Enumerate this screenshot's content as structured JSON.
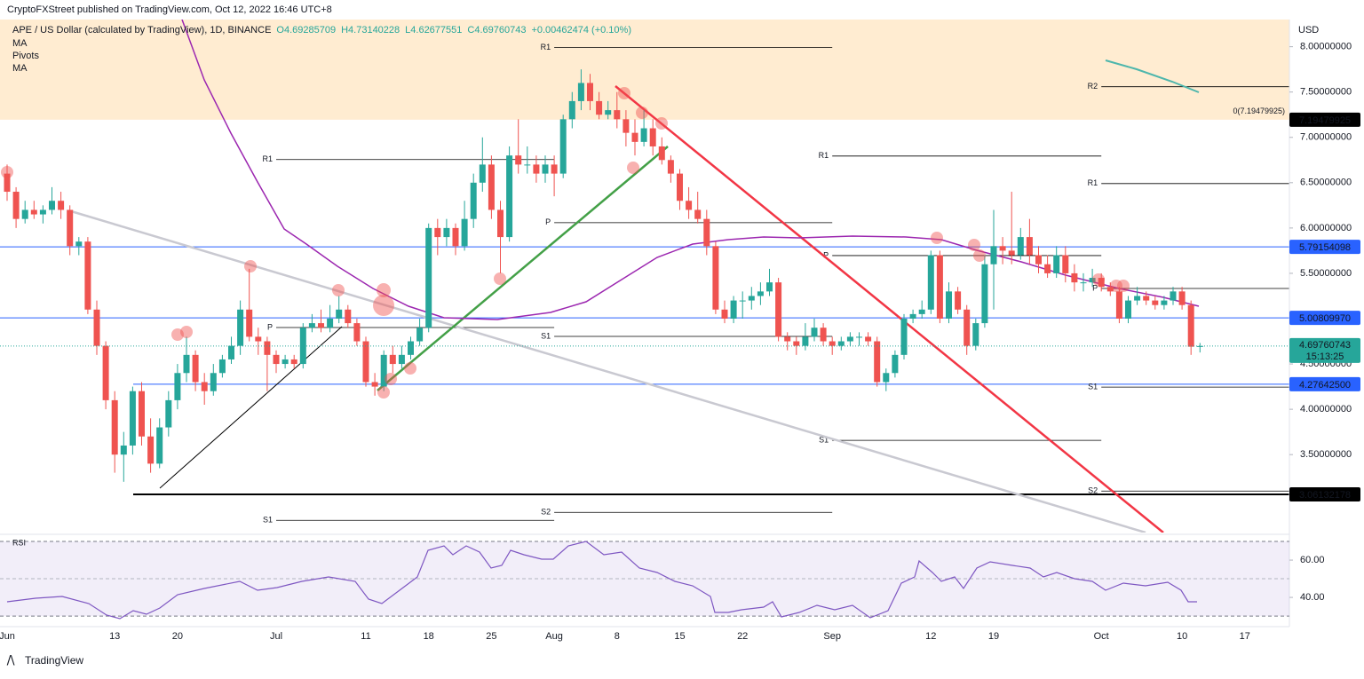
{
  "header": {
    "published": "CryptoFXStreet published on TradingView.com, Oct 12, 2022 16:46 UTC+8",
    "logo": "TradingView"
  },
  "legend": {
    "symbol": "APE / US Dollar (calculated by TradingView), 1D, BINANCE",
    "open": "O4.69285709",
    "high": "H4.73140228",
    "low": "L4.62677551",
    "close": "C4.69760743",
    "change": "+0.00462474 (+0.10%)",
    "indicators": [
      "MA",
      "Pivots",
      "MA"
    ]
  },
  "chart_data": {
    "type": "candlestick",
    "currency": "USD",
    "up_color": "#26a69a",
    "down_color": "#ef5350",
    "categories": [
      "Jun",
      null,
      null,
      null,
      null,
      null,
      null,
      null,
      null,
      null,
      null,
      null,
      "13",
      null,
      null,
      null,
      null,
      null,
      null,
      "20",
      null,
      null,
      null,
      null,
      null,
      null,
      null,
      null,
      null,
      null,
      "Jul",
      null,
      null,
      null,
      null,
      null,
      null,
      null,
      null,
      null,
      "11",
      null,
      null,
      null,
      null,
      null,
      null,
      "18",
      null,
      null,
      null,
      null,
      null,
      null,
      "25",
      null,
      null,
      null,
      null,
      null,
      null,
      "Aug",
      null,
      null,
      null,
      null,
      null,
      null,
      "8",
      null,
      null,
      null,
      null,
      null,
      null,
      "15",
      null,
      null,
      null,
      null,
      null,
      null,
      "22",
      null,
      null,
      null,
      null,
      null,
      null,
      null,
      null,
      null,
      "Sep",
      null,
      null,
      null,
      null,
      null,
      null,
      null,
      null,
      null,
      null,
      "12",
      null,
      null,
      null,
      null,
      null,
      null,
      "19",
      null,
      null,
      null,
      null,
      null,
      null,
      null,
      null,
      null,
      null,
      null,
      "Oct",
      null,
      null,
      null,
      null,
      null,
      null,
      null,
      null,
      "10",
      null,
      null,
      null,
      null,
      null,
      null,
      "17"
    ],
    "candles": [
      [
        6.6,
        6.7,
        6.3,
        6.4
      ],
      [
        6.4,
        6.45,
        6.0,
        6.1
      ],
      [
        6.1,
        6.3,
        6.05,
        6.2
      ],
      [
        6.2,
        6.3,
        6.1,
        6.15
      ],
      [
        6.15,
        6.25,
        6.05,
        6.2
      ],
      [
        6.2,
        6.45,
        6.15,
        6.3
      ],
      [
        6.3,
        6.4,
        6.1,
        6.2
      ],
      [
        6.2,
        6.25,
        5.7,
        5.8
      ],
      [
        5.8,
        5.9,
        5.7,
        5.85
      ],
      [
        5.85,
        5.9,
        5.05,
        5.1
      ],
      [
        5.1,
        5.2,
        4.6,
        4.7
      ],
      [
        4.7,
        4.75,
        4.0,
        4.1
      ],
      [
        4.1,
        4.2,
        3.3,
        3.5
      ],
      [
        3.5,
        3.75,
        3.2,
        3.6
      ],
      [
        3.6,
        4.25,
        3.5,
        4.2
      ],
      [
        4.2,
        4.3,
        3.6,
        3.7
      ],
      [
        3.7,
        3.9,
        3.3,
        3.4
      ],
      [
        3.4,
        3.9,
        3.35,
        3.8
      ],
      [
        3.8,
        4.2,
        3.7,
        4.1
      ],
      [
        4.1,
        4.5,
        4.0,
        4.4
      ],
      [
        4.4,
        4.8,
        4.3,
        4.6
      ],
      [
        4.6,
        4.65,
        4.2,
        4.3
      ],
      [
        4.3,
        4.4,
        4.05,
        4.2
      ],
      [
        4.2,
        4.5,
        4.15,
        4.4
      ],
      [
        4.4,
        4.6,
        4.35,
        4.55
      ],
      [
        4.55,
        4.8,
        4.5,
        4.7
      ],
      [
        4.7,
        5.2,
        4.6,
        5.1
      ],
      [
        5.1,
        5.55,
        4.75,
        4.8
      ],
      [
        4.8,
        4.9,
        4.6,
        4.75
      ],
      [
        4.75,
        4.8,
        4.2,
        4.6
      ],
      [
        4.6,
        4.65,
        4.4,
        4.5
      ],
      [
        4.5,
        4.6,
        4.45,
        4.55
      ],
      [
        4.55,
        4.6,
        4.45,
        4.5
      ],
      [
        4.5,
        4.95,
        4.45,
        4.9
      ],
      [
        4.9,
        5.05,
        4.85,
        4.95
      ],
      [
        4.95,
        5.1,
        4.85,
        4.9
      ],
      [
        4.9,
        5.15,
        4.85,
        5.0
      ],
      [
        5.0,
        5.25,
        4.95,
        5.1
      ],
      [
        5.1,
        5.15,
        4.9,
        4.95
      ],
      [
        4.95,
        5.0,
        4.7,
        4.75
      ],
      [
        4.75,
        4.8,
        4.25,
        4.3
      ],
      [
        4.3,
        4.4,
        4.15,
        4.25
      ],
      [
        4.25,
        4.65,
        4.2,
        4.6
      ],
      [
        4.6,
        4.7,
        4.4,
        4.5
      ],
      [
        4.5,
        4.7,
        4.45,
        4.6
      ],
      [
        4.6,
        4.8,
        4.55,
        4.75
      ],
      [
        4.75,
        5.0,
        4.7,
        4.9
      ],
      [
        4.9,
        6.05,
        4.85,
        6.0
      ],
      [
        6.0,
        6.1,
        5.7,
        5.9
      ],
      [
        5.9,
        6.1,
        5.8,
        6.0
      ],
      [
        6.0,
        6.05,
        5.7,
        5.8
      ],
      [
        5.8,
        6.3,
        5.75,
        6.1
      ],
      [
        6.1,
        6.6,
        6.0,
        6.5
      ],
      [
        6.5,
        7.0,
        6.4,
        6.7
      ],
      [
        6.7,
        6.8,
        6.1,
        6.2
      ],
      [
        6.2,
        6.3,
        5.5,
        5.9
      ],
      [
        5.9,
        6.9,
        5.85,
        6.8
      ],
      [
        6.8,
        7.2,
        6.6,
        6.7
      ],
      [
        6.7,
        6.9,
        6.6,
        6.7
      ],
      [
        6.7,
        6.8,
        6.5,
        6.6
      ],
      [
        6.6,
        6.8,
        6.5,
        6.7
      ],
      [
        6.7,
        6.8,
        6.35,
        6.6
      ],
      [
        6.6,
        7.25,
        6.55,
        7.2
      ],
      [
        7.2,
        7.5,
        7.1,
        7.4
      ],
      [
        7.4,
        7.75,
        7.3,
        7.6
      ],
      [
        7.6,
        7.7,
        7.3,
        7.4
      ],
      [
        7.4,
        7.5,
        7.2,
        7.25
      ],
      [
        7.25,
        7.4,
        7.2,
        7.3
      ],
      [
        7.3,
        7.5,
        7.1,
        7.2
      ],
      [
        7.2,
        7.3,
        6.9,
        7.05
      ],
      [
        7.05,
        7.2,
        6.8,
        6.95
      ],
      [
        6.95,
        7.3,
        6.9,
        7.1
      ],
      [
        7.1,
        7.2,
        6.8,
        6.9
      ],
      [
        6.9,
        7.0,
        6.7,
        6.75
      ],
      [
        6.75,
        6.8,
        6.5,
        6.6
      ],
      [
        6.6,
        6.65,
        6.2,
        6.3
      ],
      [
        6.3,
        6.45,
        6.1,
        6.2
      ],
      [
        6.2,
        6.4,
        6.05,
        6.1
      ],
      [
        6.1,
        6.2,
        5.7,
        5.8
      ],
      [
        5.8,
        5.85,
        5.05,
        5.1
      ],
      [
        5.1,
        5.2,
        4.95,
        5.0
      ],
      [
        5.0,
        5.25,
        4.95,
        5.2
      ],
      [
        5.2,
        5.3,
        5.0,
        5.2
      ],
      [
        5.2,
        5.35,
        5.1,
        5.25
      ],
      [
        5.25,
        5.4,
        5.15,
        5.3
      ],
      [
        5.3,
        5.55,
        5.25,
        5.4
      ],
      [
        5.4,
        5.45,
        4.75,
        4.8
      ],
      [
        4.8,
        4.85,
        4.65,
        4.75
      ],
      [
        4.75,
        4.8,
        4.6,
        4.7
      ],
      [
        4.7,
        4.95,
        4.65,
        4.8
      ],
      [
        4.8,
        5.0,
        4.75,
        4.9
      ],
      [
        4.9,
        4.95,
        4.7,
        4.75
      ],
      [
        4.75,
        4.8,
        4.6,
        4.7
      ],
      [
        4.7,
        4.8,
        4.65,
        4.75
      ],
      [
        4.75,
        4.85,
        4.7,
        4.8
      ],
      [
        4.8,
        4.85,
        4.7,
        4.8
      ],
      [
        4.8,
        4.85,
        4.7,
        4.75
      ],
      [
        4.75,
        4.8,
        4.25,
        4.3
      ],
      [
        4.3,
        4.45,
        4.2,
        4.4
      ],
      [
        4.4,
        4.65,
        4.35,
        4.6
      ],
      [
        4.6,
        5.05,
        4.55,
        5.0
      ],
      [
        5.0,
        5.1,
        4.95,
        5.05
      ],
      [
        5.05,
        5.2,
        5.0,
        5.1
      ],
      [
        5.1,
        5.75,
        5.05,
        5.7
      ],
      [
        5.7,
        5.75,
        4.95,
        5.0
      ],
      [
        5.0,
        5.4,
        4.95,
        5.3
      ],
      [
        5.3,
        5.35,
        5.05,
        5.1
      ],
      [
        5.1,
        5.15,
        4.6,
        4.7
      ],
      [
        4.7,
        5.0,
        4.65,
        4.95
      ],
      [
        4.95,
        5.7,
        4.9,
        5.6
      ],
      [
        5.6,
        6.2,
        5.1,
        5.8
      ],
      [
        5.8,
        5.9,
        5.6,
        5.75
      ],
      [
        5.75,
        6.4,
        5.6,
        5.7
      ],
      [
        5.7,
        6.0,
        5.65,
        5.9
      ],
      [
        5.9,
        6.1,
        5.6,
        5.7
      ],
      [
        5.7,
        5.8,
        5.5,
        5.6
      ],
      [
        5.6,
        5.7,
        5.45,
        5.5
      ],
      [
        5.5,
        5.8,
        5.45,
        5.7
      ],
      [
        5.7,
        5.8,
        5.4,
        5.5
      ],
      [
        5.5,
        5.6,
        5.3,
        5.4
      ],
      [
        5.4,
        5.5,
        5.3,
        5.4
      ],
      [
        5.4,
        5.55,
        5.35,
        5.45
      ],
      [
        5.45,
        5.5,
        5.3,
        5.35
      ],
      [
        5.35,
        5.4,
        5.25,
        5.3
      ],
      [
        5.3,
        5.35,
        4.95,
        5.0
      ],
      [
        5.0,
        5.25,
        4.95,
        5.2
      ],
      [
        5.2,
        5.35,
        5.15,
        5.25
      ],
      [
        5.25,
        5.3,
        5.15,
        5.2
      ],
      [
        5.2,
        5.25,
        5.1,
        5.15
      ],
      [
        5.15,
        5.25,
        5.1,
        5.2
      ],
      [
        5.2,
        5.35,
        5.15,
        5.3
      ],
      [
        5.3,
        5.35,
        5.1,
        5.15
      ],
      [
        5.15,
        5.2,
        4.6,
        4.69
      ],
      [
        4.69285709,
        4.73140228,
        4.62677551,
        4.69760743
      ],
      null,
      null,
      null,
      null,
      null
    ],
    "countdown": "15:13:25",
    "ylim": [
      2.64,
      8.3
    ],
    "yticks": [
      {
        "value": 3.5,
        "label": "3.50000000"
      },
      {
        "value": 4,
        "label": "4.00000000"
      },
      {
        "value": 4.5,
        "label": "4.50000000"
      },
      {
        "value": 5,
        "label": "5.00000000"
      },
      {
        "value": 5.5,
        "label": "5.50000000"
      },
      {
        "value": 6,
        "label": "6.00000000"
      },
      {
        "value": 6.5,
        "label": "6.50000000"
      },
      {
        "value": 7,
        "label": "7.00000000"
      },
      {
        "value": 7.5,
        "label": "7.50000000"
      },
      {
        "value": 8,
        "label": "8.00000000"
      }
    ],
    "levels": [
      {
        "value": 7.19479925,
        "label": "7.19479925",
        "color": "#000000"
      },
      {
        "value": 5.79154098,
        "label": "5.79154098",
        "color": "#2962ff"
      },
      {
        "value": 5.0080997,
        "label": "5.00809970",
        "color": "#2962ff"
      },
      {
        "value": 4.276425,
        "label": "4.27642500",
        "color": "#2962ff"
      },
      {
        "value": 3.06132178,
        "label": "3.06132178",
        "color": "#000000"
      }
    ],
    "fib_label": "0(7.19479925)",
    "pivots": [
      [
        {
          "label": "R1",
          "value": 6.755
        },
        {
          "label": "P",
          "value": 4.902
        },
        {
          "label": "S1",
          "value": 2.775
        }
      ],
      [
        {
          "label": "R1",
          "value": 7.99
        },
        {
          "label": "P",
          "value": 6.059
        },
        {
          "label": "S1",
          "value": 4.804
        },
        {
          "label": "S2",
          "value": 2.863
        }
      ],
      [
        {
          "label": "R1",
          "value": 6.794
        },
        {
          "label": "P",
          "value": 5.696
        },
        {
          "label": "S1",
          "value": 3.657
        }
      ],
      [
        {
          "label": "R2",
          "value": 7.559
        },
        {
          "label": "R1",
          "value": 6.49
        },
        {
          "label": "P",
          "value": 5.333
        },
        {
          "label": "S1",
          "value": 4.245
        },
        {
          "label": "S2",
          "value": 3.098
        }
      ]
    ],
    "rsi": {
      "title": "RSI",
      "ylim": [
        24.8,
        72.4
      ],
      "yticks": [
        {
          "value": 40,
          "label": "40.00"
        },
        {
          "value": 60,
          "label": "60.00"
        }
      ],
      "bands": [
        30,
        70
      ]
    }
  }
}
